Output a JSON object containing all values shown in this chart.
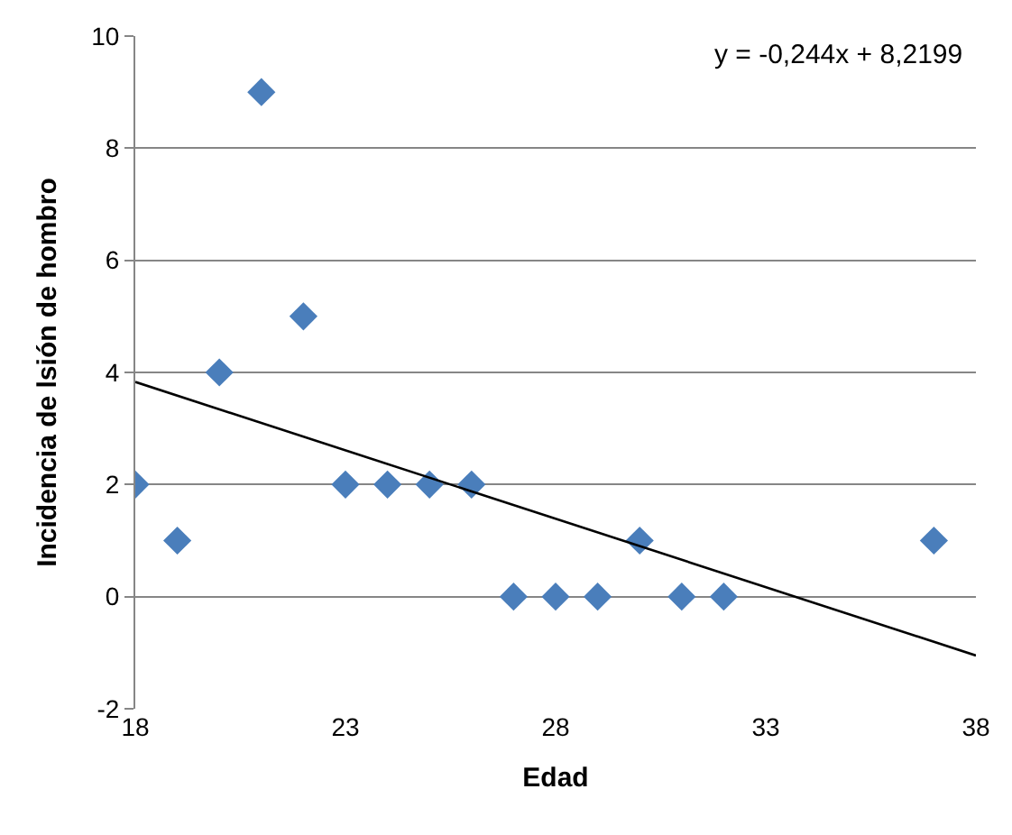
{
  "chart_data": {
    "type": "scatter",
    "xlabel": "Edad",
    "ylabel": "Incidencia de lsión de hombro",
    "xlim": [
      18,
      38
    ],
    "xticks": [
      18,
      23,
      28,
      33,
      38
    ],
    "ylim": [
      -2,
      10
    ],
    "yticks": [
      -2,
      0,
      2,
      4,
      6,
      8,
      10
    ],
    "grid": "y",
    "marker": "diamond",
    "annotations": [
      "y = -0,244x + 8,2199"
    ],
    "series": [
      {
        "color": "#4a7ebb",
        "x": [
          18,
          19,
          20,
          21,
          22,
          23,
          24,
          25,
          26,
          27,
          28,
          29,
          30,
          31,
          32,
          37
        ],
        "values": [
          2,
          1,
          4,
          9,
          5,
          2,
          2,
          2,
          2,
          0,
          0,
          0,
          1,
          0,
          0,
          1
        ]
      },
      {
        "type": "line",
        "color": "#000000",
        "marker": "none",
        "x": [
          18,
          38
        ],
        "values": [
          3.83,
          -1.05
        ]
      }
    ]
  }
}
